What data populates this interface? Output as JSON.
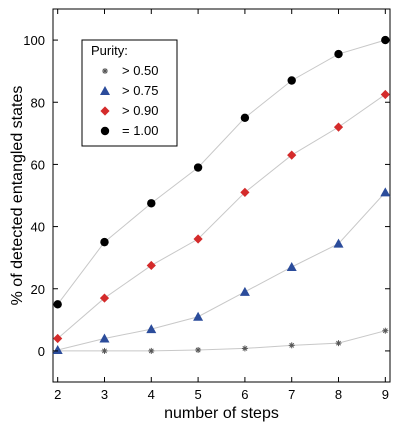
{
  "chart_data": {
    "type": "line",
    "xlabel": "number of steps",
    "ylabel": "% of detected entangled states",
    "xlim": [
      1.9,
      9.1
    ],
    "ylim": [
      -10,
      110
    ],
    "xticks": [
      2,
      3,
      4,
      5,
      6,
      7,
      8,
      9
    ],
    "yticks": [
      0,
      20,
      40,
      60,
      80,
      100
    ],
    "x": [
      2,
      3,
      4,
      5,
      6,
      7,
      8,
      9
    ],
    "grid": false,
    "legend": {
      "title": "Purity:",
      "placement": "top-left"
    },
    "series": [
      {
        "name": "> 0.50",
        "marker": "asterisk",
        "color": "#555555",
        "values": [
          0,
          0,
          0,
          0.3,
          0.8,
          1.8,
          2.5,
          6.5
        ]
      },
      {
        "name": "> 0.75",
        "marker": "triangle",
        "color": "#2b4c9b",
        "values": [
          0.3,
          4,
          7,
          11,
          19,
          27,
          34.5,
          51
        ]
      },
      {
        "name": "> 0.90",
        "marker": "diamond",
        "color": "#d42b2b",
        "values": [
          4,
          17,
          27.5,
          36,
          51,
          63,
          72,
          82.5
        ]
      },
      {
        "name": "= 1.00",
        "marker": "circle",
        "color": "#000000",
        "values": [
          15,
          35,
          47.5,
          59,
          75,
          87,
          95.5,
          100
        ]
      }
    ],
    "line_color": "#c8c8c8"
  }
}
